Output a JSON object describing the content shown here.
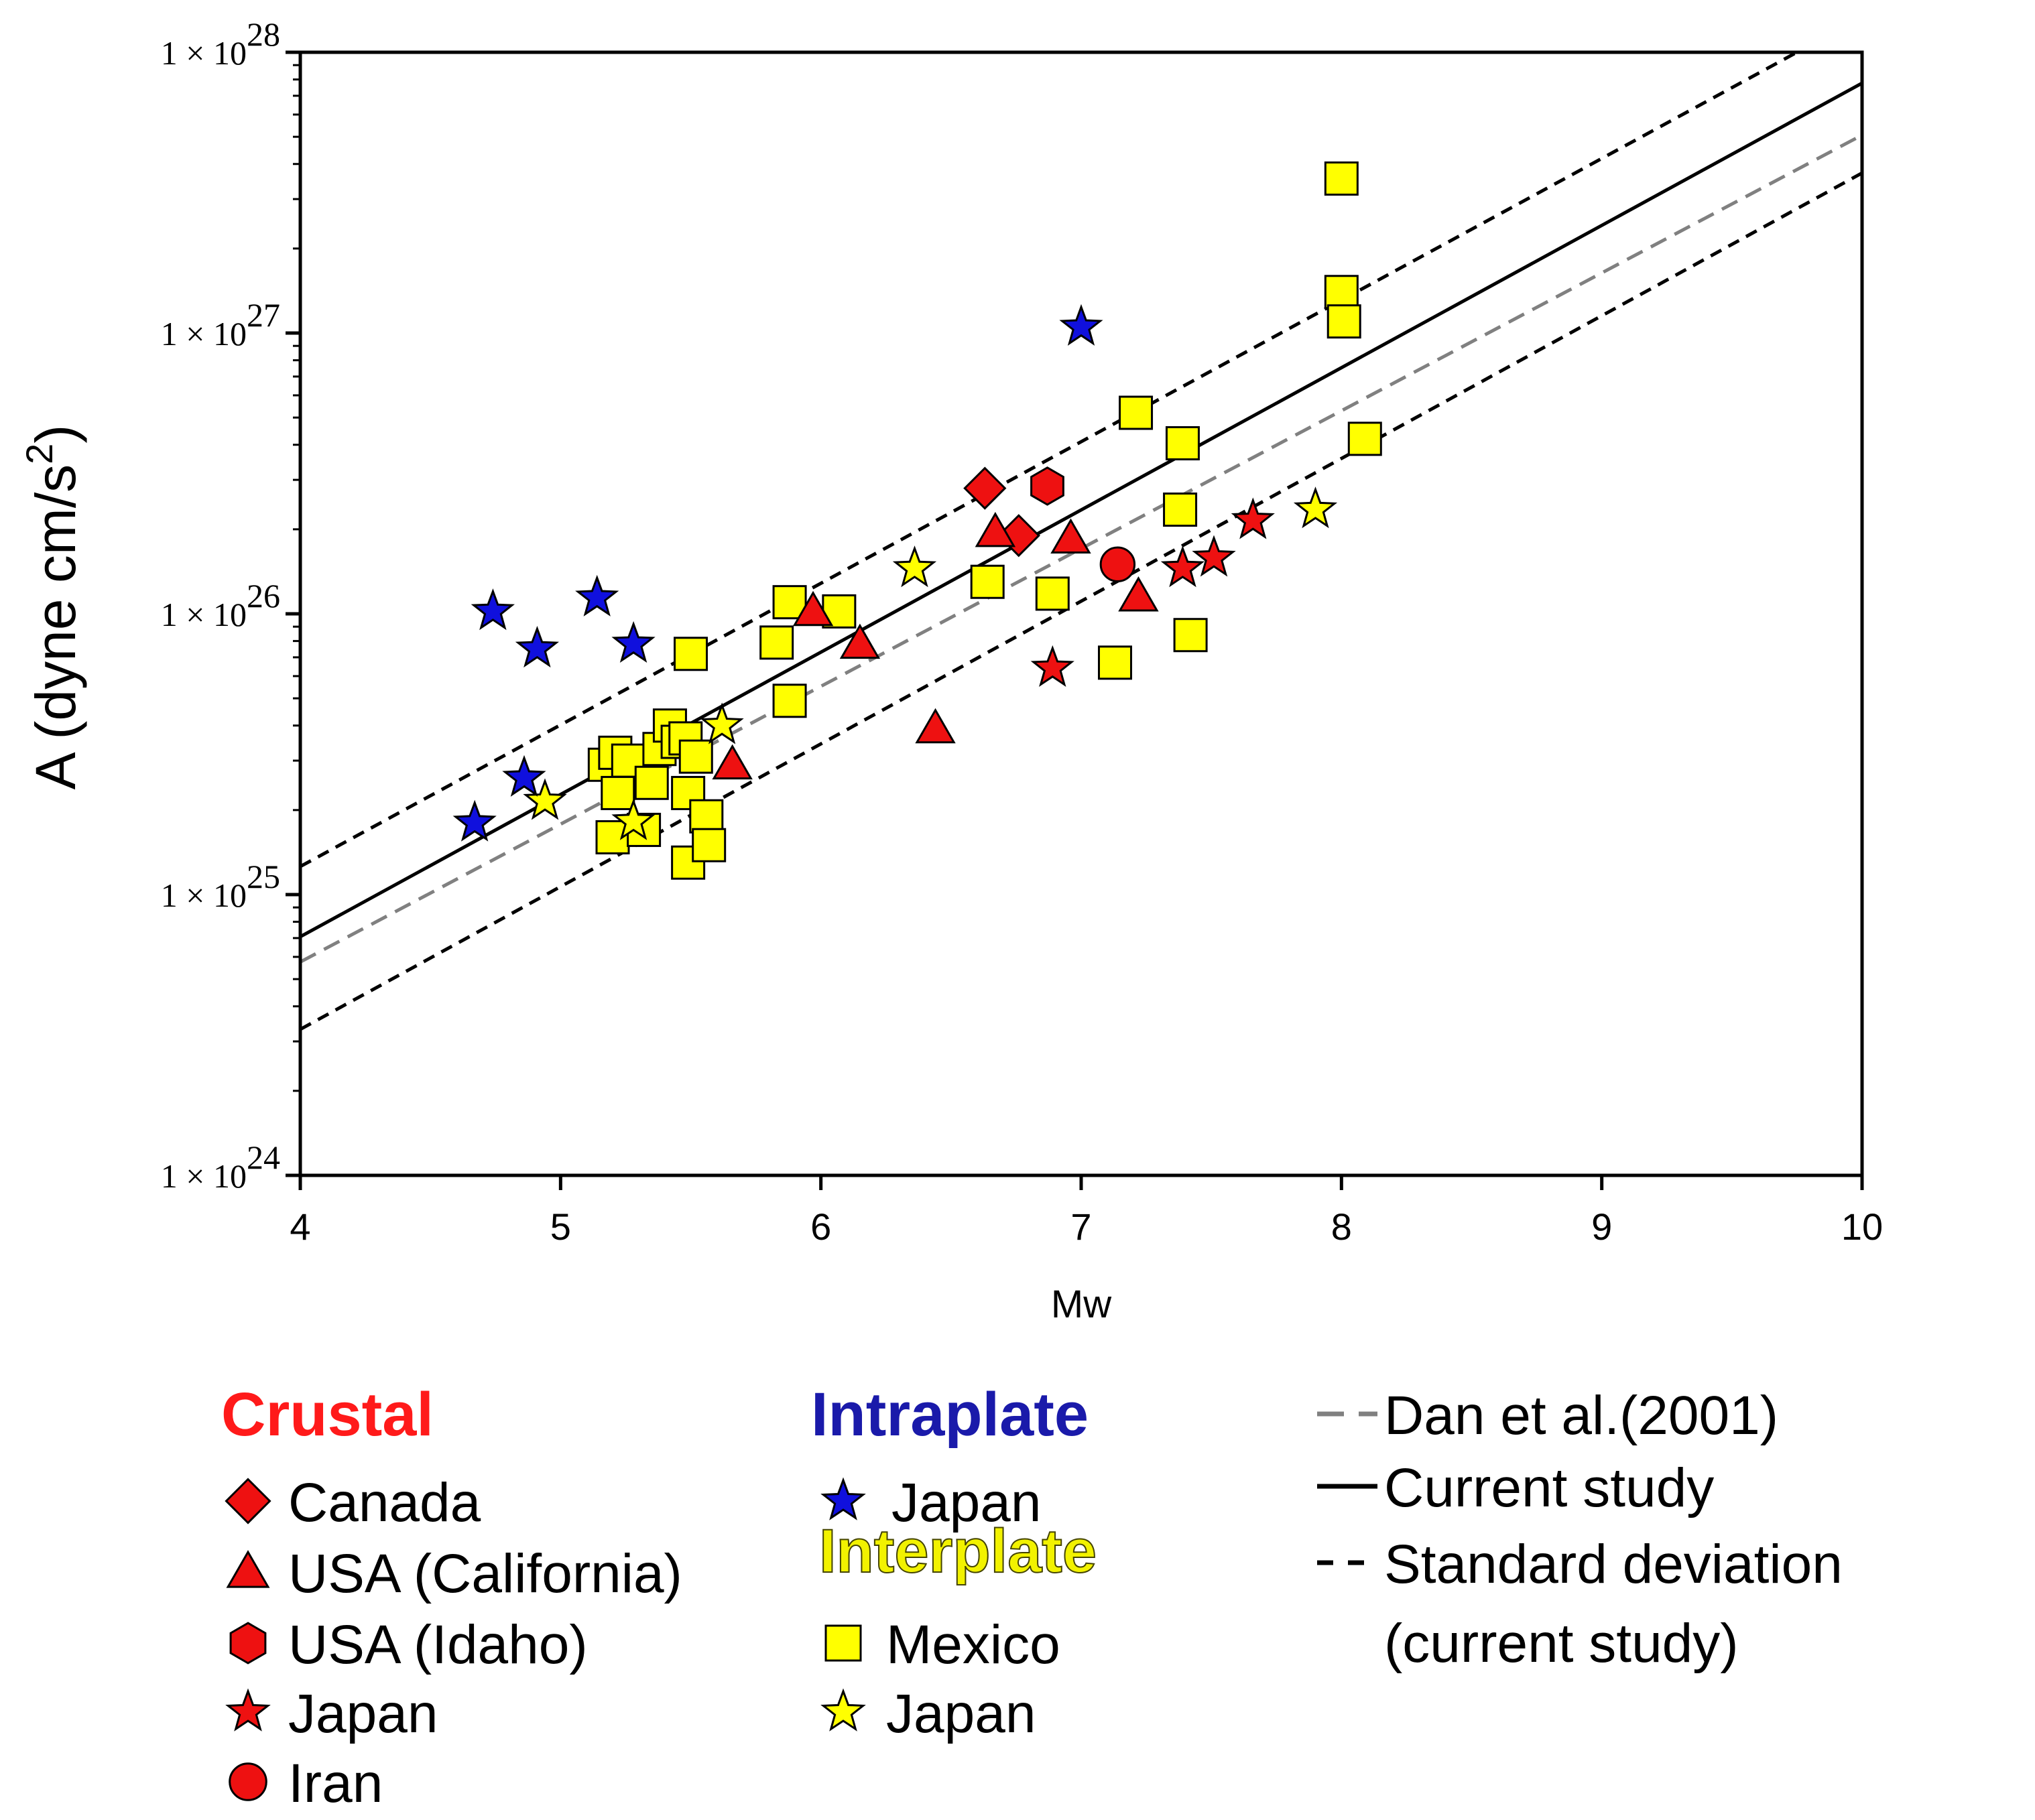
{
  "chart_data": {
    "type": "scatter",
    "title": "",
    "xlabel": "Mw",
    "ylabel": "A (dyne cm/s",
    "ylabel_sup": "2",
    "ylabel_close": ")",
    "xlim": [
      4,
      10
    ],
    "ylim": [
      1e+24,
      1e+28
    ],
    "yscale": "log",
    "x_ticks": [
      4,
      5,
      6,
      7,
      8,
      9,
      10
    ],
    "x_tick_labels": [
      "4",
      "5",
      "6",
      "7",
      "8",
      "9",
      "10"
    ],
    "y_ticks": [
      1e+24,
      1e+25,
      1e+26,
      1e+27,
      1e+28
    ],
    "y_tick_labels": [
      {
        "base": "1 × 10",
        "exp": "24"
      },
      {
        "base": "1 × 10",
        "exp": "25"
      },
      {
        "base": "1 × 10",
        "exp": "26"
      },
      {
        "base": "1 × 10",
        "exp": "27"
      },
      {
        "base": "1 × 10",
        "exp": "28"
      }
    ],
    "grid": false,
    "lines": [
      {
        "name": "Dan et al.(2001)",
        "style": "dashed-gray",
        "color": "#808080",
        "x": [
          4,
          10
        ],
        "log10y": [
          24.76,
          27.705
        ]
      },
      {
        "name": "Current study",
        "style": "solid",
        "color": "#000000",
        "x": [
          4,
          10
        ],
        "log10y": [
          24.85,
          27.89
        ]
      },
      {
        "name": "Standard deviation upper",
        "style": "dashed",
        "color": "#000000",
        "x": [
          4,
          9.75
        ],
        "log10y": [
          25.1,
          28.0
        ]
      },
      {
        "name": "Standard deviation lower",
        "style": "dashed",
        "color": "#000000",
        "x": [
          4,
          10
        ],
        "log10y": [
          24.52,
          27.57
        ]
      }
    ],
    "series": [
      {
        "name": "Crustal Canada",
        "marker": "diamond",
        "color": "#ee1111",
        "points": [
          {
            "x": 6.63,
            "y": 2.8e+26
          },
          {
            "x": 6.76,
            "y": 1.9e+26
          }
        ]
      },
      {
        "name": "Crustal USA (California)",
        "marker": "triangle",
        "color": "#ee1111",
        "points": [
          {
            "x": 5.66,
            "y": 2.9e+25
          },
          {
            "x": 5.97,
            "y": 1.02e+26
          },
          {
            "x": 6.15,
            "y": 7.8e+25
          },
          {
            "x": 6.44,
            "y": 3.9e+25
          },
          {
            "x": 6.67,
            "y": 1.95e+26
          },
          {
            "x": 6.96,
            "y": 1.85e+26
          },
          {
            "x": 7.22,
            "y": 1.15e+26
          }
        ]
      },
      {
        "name": "Crustal USA (Idaho)",
        "marker": "hexagon",
        "color": "#ee1111",
        "points": [
          {
            "x": 6.87,
            "y": 2.85e+26
          }
        ]
      },
      {
        "name": "Crustal Japan",
        "marker": "star",
        "color": "#ee1111",
        "points": [
          {
            "x": 6.89,
            "y": 6.4e+25
          },
          {
            "x": 7.39,
            "y": 1.45e+26
          },
          {
            "x": 7.51,
            "y": 1.58e+26
          },
          {
            "x": 7.66,
            "y": 2.15e+26
          }
        ]
      },
      {
        "name": "Crustal Iran",
        "marker": "circle",
        "color": "#ee1111",
        "points": [
          {
            "x": 7.14,
            "y": 1.5e+26
          }
        ]
      },
      {
        "name": "Intraplate Japan",
        "marker": "star",
        "color": "#1010dd",
        "points": [
          {
            "x": 4.67,
            "y": 1.8e+25
          },
          {
            "x": 4.74,
            "y": 1.02e+26
          },
          {
            "x": 4.86,
            "y": 2.6e+25
          },
          {
            "x": 4.91,
            "y": 7.5e+25
          },
          {
            "x": 5.14,
            "y": 1.14e+26
          },
          {
            "x": 5.28,
            "y": 7.8e+25
          },
          {
            "x": 7.0,
            "y": 1.05e+27
          }
        ]
      },
      {
        "name": "Interplate Mexico",
        "marker": "square",
        "color": "#ffff00",
        "points": [
          {
            "x": 5.17,
            "y": 2.9e+25
          },
          {
            "x": 5.2,
            "y": 1.6e+25
          },
          {
            "x": 5.21,
            "y": 3.2e+25
          },
          {
            "x": 5.22,
            "y": 2.3e+25
          },
          {
            "x": 5.26,
            "y": 3e+25
          },
          {
            "x": 5.32,
            "y": 1.7e+25
          },
          {
            "x": 5.35,
            "y": 2.5e+25
          },
          {
            "x": 5.38,
            "y": 3.3e+25
          },
          {
            "x": 5.42,
            "y": 4e+25
          },
          {
            "x": 5.45,
            "y": 3.5e+25
          },
          {
            "x": 5.48,
            "y": 3.6e+25
          },
          {
            "x": 5.49,
            "y": 2.3e+25
          },
          {
            "x": 5.49,
            "y": 1.3e+25
          },
          {
            "x": 5.5,
            "y": 7.2e+25
          },
          {
            "x": 5.52,
            "y": 3.1e+25
          },
          {
            "x": 5.56,
            "y": 1.9e+25
          },
          {
            "x": 5.57,
            "y": 1.5e+25
          },
          {
            "x": 5.83,
            "y": 7.9e+25
          },
          {
            "x": 5.88,
            "y": 4.9e+25
          },
          {
            "x": 5.88,
            "y": 1.1e+26
          },
          {
            "x": 6.07,
            "y": 1.02e+26
          },
          {
            "x": 6.64,
            "y": 1.3e+26
          },
          {
            "x": 6.89,
            "y": 1.18e+26
          },
          {
            "x": 7.13,
            "y": 6.7e+25
          },
          {
            "x": 7.21,
            "y": 5.2e+26
          },
          {
            "x": 7.38,
            "y": 2.35e+26
          },
          {
            "x": 7.39,
            "y": 4.05e+26
          },
          {
            "x": 7.42,
            "y": 8.4e+25
          },
          {
            "x": 8.0,
            "y": 3.55e+27
          },
          {
            "x": 8.0,
            "y": 1.4e+27
          },
          {
            "x": 8.01,
            "y": 1.1e+27
          },
          {
            "x": 8.09,
            "y": 4.2e+26
          }
        ]
      },
      {
        "name": "Interplate Japan",
        "marker": "star",
        "color": "#ffff00",
        "points": [
          {
            "x": 4.94,
            "y": 2.15e+25
          },
          {
            "x": 5.28,
            "y": 1.82e+25
          },
          {
            "x": 5.62,
            "y": 4e+25
          },
          {
            "x": 6.36,
            "y": 1.45e+26
          },
          {
            "x": 7.9,
            "y": 2.35e+26
          }
        ]
      }
    ]
  },
  "legend": {
    "crustal": {
      "title": "Crustal",
      "color": "#ff1a1a",
      "items": [
        {
          "marker": "diamond",
          "label": "Canada"
        },
        {
          "marker": "triangle",
          "label": "USA (California)"
        },
        {
          "marker": "hexagon",
          "label": "USA (Idaho)"
        },
        {
          "marker": "star",
          "label": "Japan"
        },
        {
          "marker": "circle",
          "label": "Iran"
        }
      ]
    },
    "intraplate": {
      "title": "Intraplate",
      "color": "#1a1aaa",
      "items": [
        {
          "marker": "star",
          "label": "Japan"
        }
      ]
    },
    "interplate": {
      "title": "Interplate",
      "color": "#f2f200",
      "items": [
        {
          "marker": "square",
          "label": "Mexico"
        },
        {
          "marker": "star",
          "label": "Japan"
        }
      ]
    },
    "lines": [
      {
        "style": "dashed-gray",
        "label": "Dan et al.(2001)"
      },
      {
        "style": "solid",
        "label": "Current study"
      },
      {
        "style": "dashed",
        "label": "Standard deviation"
      },
      {
        "style": "none",
        "label": "(current study)"
      }
    ]
  }
}
